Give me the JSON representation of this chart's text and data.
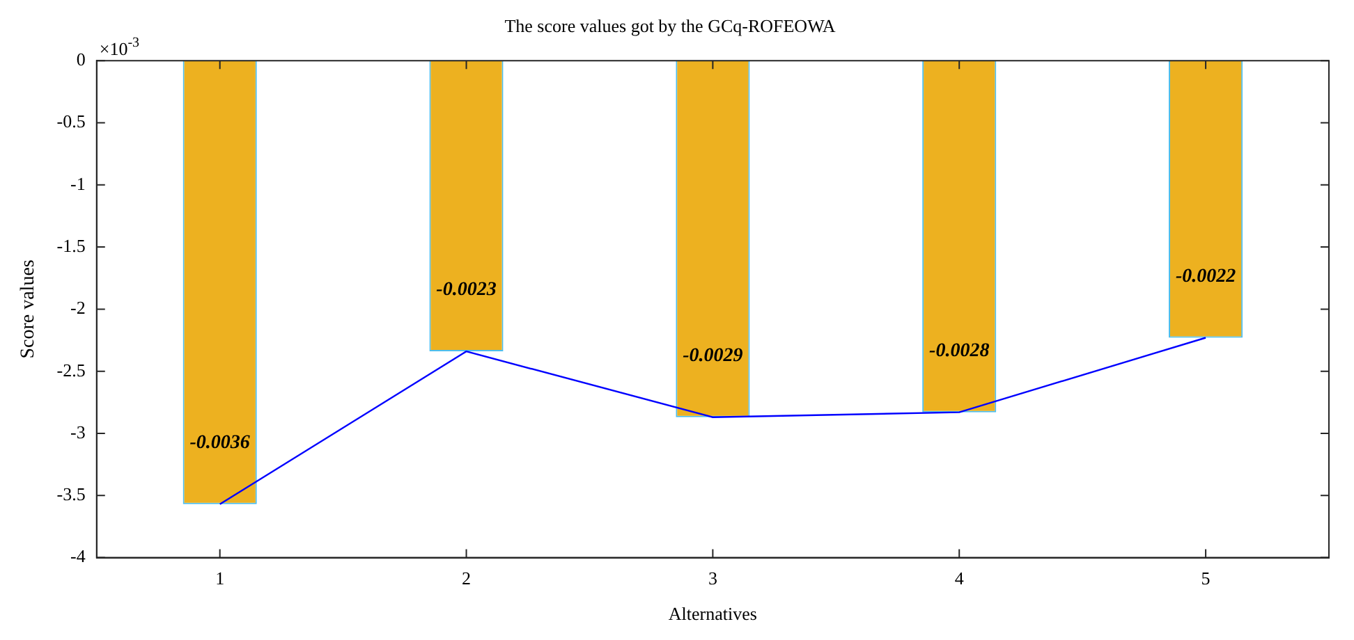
{
  "chart_data": {
    "type": "bar",
    "title": "The score values got by the GCq-ROFEOWA",
    "xlabel": "Alternatives",
    "ylabel": "Score values",
    "annotations": [
      "×10$^{-3}$",
      {
        "text": "-0.0036",
        "x": "1",
        "y": -3.57
      },
      {
        "text": "-0.0023",
        "x": "2",
        "y": -2.34
      },
      {
        "text": "-0.0029",
        "x": "3",
        "y": -2.87
      },
      {
        "text": "-0.0028",
        "x": "4",
        "y": -2.83
      },
      {
        "text": "-0.0022",
        "x": "5",
        "y": -2.23
      }
    ],
    "categories": [
      "1",
      "2",
      "3",
      "4",
      "5"
    ],
    "series": [
      {
        "color": "#edb120",
        "values": [
          -3.57,
          -2.34,
          -2.87,
          -2.83,
          -2.23
        ]
      },
      {
        "type": "line",
        "color": "#0000ff",
        "values": [
          -3.57,
          -2.34,
          -2.87,
          -2.83,
          -2.23
        ]
      }
    ],
    "ylim": [
      -4,
      0
    ],
    "yticks": [
      0,
      -0.5,
      -1,
      -1.5,
      -2,
      -2.5,
      -3,
      -3.5,
      -4
    ],
    "grid": false,
    "legend": false,
    "marker": "none",
    "line_style": "solid"
  }
}
